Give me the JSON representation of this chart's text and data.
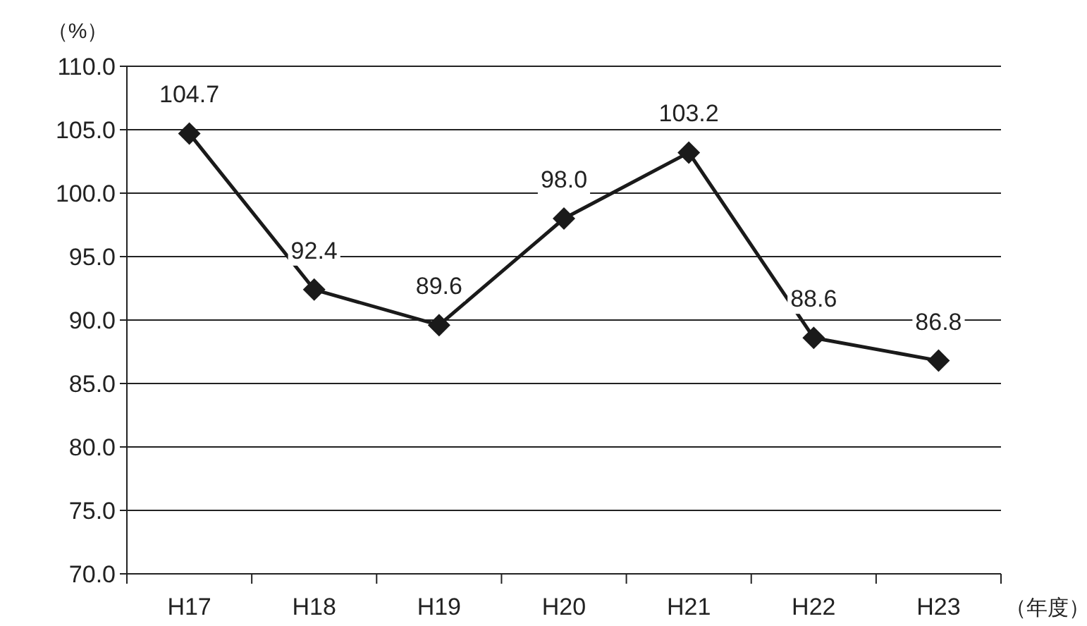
{
  "chart_data": {
    "type": "line",
    "xlabel": "（年度）",
    "ylabel": "（%）",
    "categories": [
      "H17",
      "H18",
      "H19",
      "H20",
      "H21",
      "H22",
      "H23"
    ],
    "series": [
      {
        "color": "#1a1a1a",
        "values": [
          104.7,
          92.4,
          89.6,
          98.0,
          103.2,
          88.6,
          86.8
        ],
        "value_labels": [
          "104.7",
          "92.4",
          "89.6",
          "98.0",
          "103.2",
          "88.6",
          "86.8"
        ]
      }
    ],
    "ylim": [
      70,
      110
    ],
    "yticks": [
      {
        "value": 70,
        "label": "70.0"
      },
      {
        "value": 75,
        "label": "75.0"
      },
      {
        "value": 80,
        "label": "80.0"
      },
      {
        "value": 85,
        "label": "85.0"
      },
      {
        "value": 90,
        "label": "90.0"
      },
      {
        "value": 95,
        "label": "95.0"
      },
      {
        "value": 100,
        "label": "100.0"
      },
      {
        "value": 105,
        "label": "105.0"
      },
      {
        "value": 110,
        "label": "110.0"
      }
    ],
    "grid": "y",
    "marker": "diamond",
    "line_style": "solid"
  }
}
